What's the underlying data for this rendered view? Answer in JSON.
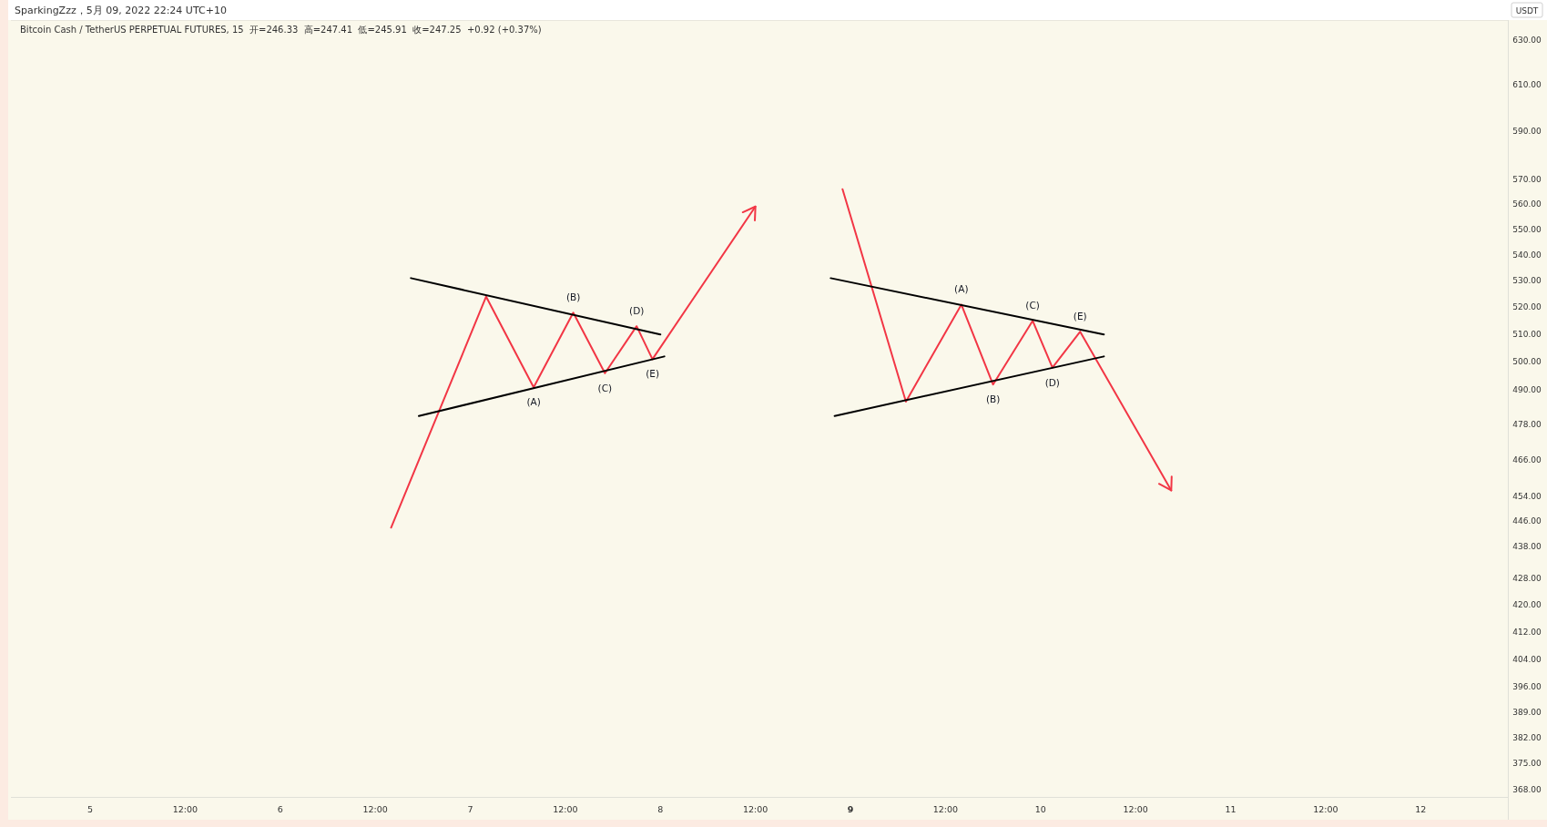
{
  "chart_data": {
    "type": "line",
    "title": "SparkingZzz，5月 09, 2022 22:24 UTC+10",
    "subtitle": "Bitcoin Cash / TetherUS PERPETUAL FUTURES, 15  开=246.33  高=247.41  低=245.91  收=247.25  +0.92 (+0.37%)",
    "ylabel": "USDT",
    "log": true,
    "xlim": [
      "2022-05-04T14:00",
      "2022-05-12T11:00"
    ],
    "ylim": [
      366,
      639
    ],
    "xticks": [
      {
        "value": "2022-05-05",
        "label": "5"
      },
      {
        "value": "2022-05-05T12:00",
        "label": "12:00"
      },
      {
        "value": "2022-05-06",
        "label": "6"
      },
      {
        "value": "2022-05-06T12:00",
        "label": "12:00"
      },
      {
        "value": "2022-05-07",
        "label": "7"
      },
      {
        "value": "2022-05-07T12:00",
        "label": "12:00"
      },
      {
        "value": "2022-05-08",
        "label": "8"
      },
      {
        "value": "2022-05-08T12:00",
        "label": "12:00"
      },
      {
        "value": "2022-05-09",
        "label": "**9**"
      },
      {
        "value": "2022-05-09T12:00",
        "label": "12:00"
      },
      {
        "value": "2022-05-10",
        "label": "10"
      },
      {
        "value": "2022-05-10T12:00",
        "label": "12:00"
      },
      {
        "value": "2022-05-11",
        "label": "11"
      },
      {
        "value": "2022-05-11T12:00",
        "label": "12:00"
      },
      {
        "value": "2022-05-12",
        "label": "12"
      }
    ],
    "yticks": [
      {
        "value": 630,
        "label": "630.00"
      },
      {
        "value": 610,
        "label": "610.00"
      },
      {
        "value": 590,
        "label": "590.00"
      },
      {
        "value": 570,
        "label": "570.00"
      },
      {
        "value": 560,
        "label": "560.00"
      },
      {
        "value": 550,
        "label": "550.00"
      },
      {
        "value": 540,
        "label": "540.00"
      },
      {
        "value": 530,
        "label": "530.00"
      },
      {
        "value": 520,
        "label": "520.00"
      },
      {
        "value": 510,
        "label": "510.00"
      },
      {
        "value": 500,
        "label": "500.00"
      },
      {
        "value": 490,
        "label": "490.00"
      },
      {
        "value": 478,
        "label": "478.00"
      },
      {
        "value": 466,
        "label": "466.00"
      },
      {
        "value": 454,
        "label": "454.00"
      },
      {
        "value": 446,
        "label": "446.00"
      },
      {
        "value": 438,
        "label": "438.00"
      },
      {
        "value": 428,
        "label": "428.00"
      },
      {
        "value": 420,
        "label": "420.00"
      },
      {
        "value": 412,
        "label": "412.00"
      },
      {
        "value": 404,
        "label": "404.00"
      },
      {
        "value": 396,
        "label": "396.00"
      },
      {
        "value": 389,
        "label": "389.00"
      },
      {
        "value": 382,
        "label": "382.00"
      },
      {
        "value": 375,
        "label": "375.00"
      },
      {
        "value": 368,
        "label": "368.00"
      }
    ],
    "series": [
      {
        "color": "#f23645",
        "x": [
          "2022-05-06T14:00",
          "2022-05-07T02:00",
          "2022-05-07T08:00",
          "2022-05-07T13:00",
          "2022-05-07T17:00",
          "2022-05-07T21:00",
          "2022-05-07T23:00",
          "2022-05-08T12:00"
        ],
        "values": [
          444,
          524,
          491,
          518,
          496,
          513,
          501,
          559
        ]
      },
      {
        "color": "#000000",
        "x": [
          "2022-05-06T16:30",
          "2022-05-08T00:00"
        ],
        "values": [
          531,
          510
        ]
      },
      {
        "color": "#000000",
        "x": [
          "2022-05-06T17:30",
          "2022-05-08T00:30"
        ],
        "values": [
          481,
          502
        ]
      },
      {
        "color": "#f23645",
        "x": [
          "2022-05-08T23:00",
          "2022-05-09T07:00",
          "2022-05-09T14:00",
          "2022-05-09T18:00",
          "2022-05-09T23:00",
          "2022-05-10T01:30",
          "2022-05-10T05:00",
          "2022-05-10T16:30"
        ],
        "values": [
          566,
          486,
          521,
          492,
          515,
          498,
          511,
          456
        ]
      },
      {
        "color": "#000000",
        "x": [
          "2022-05-08T21:30",
          "2022-05-10T08:00"
        ],
        "values": [
          531,
          510
        ]
      },
      {
        "color": "#000000",
        "x": [
          "2022-05-08T22:00",
          "2022-05-10T08:00"
        ],
        "values": [
          481,
          502
        ]
      }
    ],
    "annotations": [
      {
        "text": "(A)",
        "x": "2022-05-07T08:00",
        "y": 491
      },
      {
        "text": "(B)",
        "x": "2022-05-07T13:00",
        "y": 518
      },
      {
        "text": "(C)",
        "x": "2022-05-07T17:00",
        "y": 496
      },
      {
        "text": "(D)",
        "x": "2022-05-07T21:00",
        "y": 513
      },
      {
        "text": "(E)",
        "x": "2022-05-07T23:00",
        "y": 501
      },
      {
        "text": "(A)",
        "x": "2022-05-09T14:00",
        "y": 521
      },
      {
        "text": "(B)",
        "x": "2022-05-09T18:00",
        "y": 492
      },
      {
        "text": "(C)",
        "x": "2022-05-09T23:00",
        "y": 515
      },
      {
        "text": "(D)",
        "x": "2022-05-10T01:30",
        "y": 498
      },
      {
        "text": "(E)",
        "x": "2022-05-10T05:00",
        "y": 511
      }
    ]
  }
}
